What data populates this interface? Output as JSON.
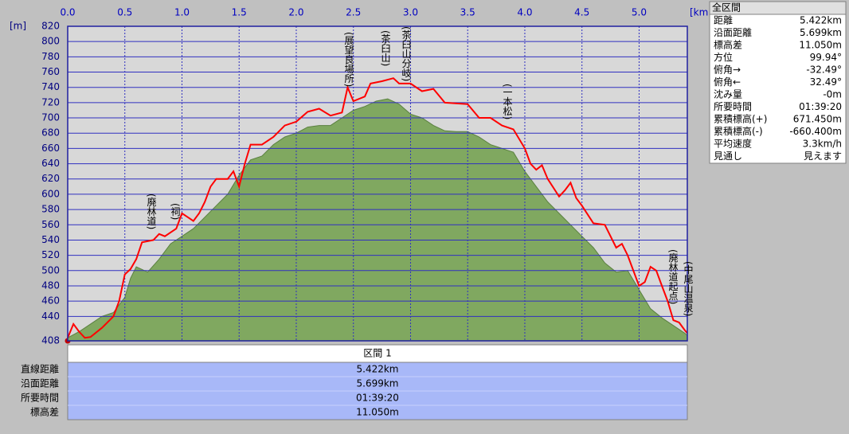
{
  "chart_data": {
    "type": "line",
    "x_unit": "[km]",
    "y_unit": "[m]",
    "xlim": [
      0,
      5.422
    ],
    "xticks": [
      {
        "value": 0,
        "label": "0.0"
      },
      0.5,
      {
        "value": 1,
        "label": "1.0"
      },
      1.5,
      {
        "value": 2,
        "label": "2.0"
      },
      2.5,
      {
        "value": 3,
        "label": "3.0"
      },
      3.5,
      {
        "value": 4,
        "label": "4.0"
      },
      4.5,
      {
        "value": 5,
        "label": "5.0"
      }
    ],
    "ylim": [
      408,
      820
    ],
    "yticks": [
      408,
      440,
      460,
      480,
      500,
      520,
      540,
      560,
      580,
      600,
      620,
      640,
      660,
      680,
      700,
      720,
      740,
      760,
      780,
      800,
      820
    ],
    "grid": true,
    "series": [
      {
        "kind": "area",
        "color": "#80a860",
        "x": [
          0,
          0.1,
          0.2,
          0.3,
          0.4,
          0.5,
          0.55,
          0.6,
          0.7,
          0.8,
          0.9,
          1.0,
          1.1,
          1.2,
          1.3,
          1.4,
          1.5,
          1.6,
          1.7,
          1.8,
          1.9,
          2.0,
          2.1,
          2.2,
          2.3,
          2.4,
          2.5,
          2.6,
          2.7,
          2.8,
          2.9,
          3.0,
          3.1,
          3.2,
          3.3,
          3.4,
          3.5,
          3.6,
          3.7,
          3.8,
          3.9,
          4.0,
          4.1,
          4.2,
          4.3,
          4.4,
          4.5,
          4.6,
          4.7,
          4.8,
          4.9,
          5.0,
          5.1,
          5.2,
          5.3,
          5.4,
          5.422
        ],
        "values": [
          412,
          420,
          430,
          440,
          445,
          465,
          490,
          505,
          498,
          515,
          535,
          545,
          555,
          570,
          585,
          600,
          625,
          645,
          650,
          665,
          675,
          680,
          688,
          690,
          690,
          700,
          710,
          715,
          722,
          725,
          718,
          705,
          700,
          690,
          683,
          682,
          682,
          675,
          665,
          660,
          655,
          630,
          610,
          590,
          575,
          560,
          545,
          530,
          510,
          498,
          500,
          475,
          450,
          438,
          428,
          418,
          415
        ]
      },
      {
        "kind": "line",
        "color": "#ff0000",
        "x": [
          0,
          0.05,
          0.1,
          0.15,
          0.2,
          0.3,
          0.4,
          0.45,
          0.5,
          0.55,
          0.6,
          0.65,
          0.75,
          0.8,
          0.85,
          0.9,
          0.95,
          1.0,
          1.05,
          1.1,
          1.15,
          1.2,
          1.25,
          1.3,
          1.4,
          1.45,
          1.5,
          1.55,
          1.6,
          1.7,
          1.8,
          1.9,
          2.0,
          2.1,
          2.2,
          2.3,
          2.4,
          2.45,
          2.5,
          2.6,
          2.65,
          2.75,
          2.85,
          2.9,
          3.0,
          3.1,
          3.2,
          3.3,
          3.5,
          3.6,
          3.7,
          3.8,
          3.9,
          4.0,
          4.05,
          4.1,
          4.15,
          4.2,
          4.3,
          4.35,
          4.4,
          4.45,
          4.5,
          4.6,
          4.7,
          4.8,
          4.85,
          4.9,
          5.0,
          5.05,
          5.1,
          5.15,
          5.2,
          5.25,
          5.3,
          5.35,
          5.4,
          5.422
        ],
        "values": [
          412,
          430,
          420,
          412,
          413,
          425,
          440,
          460,
          495,
          502,
          515,
          537,
          540,
          548,
          545,
          550,
          555,
          575,
          570,
          565,
          575,
          590,
          610,
          620,
          620,
          630,
          610,
          640,
          665,
          665,
          675,
          690,
          695,
          708,
          712,
          703,
          707,
          740,
          722,
          728,
          745,
          748,
          752,
          745,
          745,
          735,
          738,
          720,
          718,
          700,
          700,
          690,
          685,
          660,
          640,
          632,
          638,
          620,
          597,
          605,
          615,
          595,
          585,
          562,
          560,
          530,
          535,
          520,
          480,
          485,
          505,
          500,
          480,
          460,
          435,
          432,
          422,
          418
        ]
      }
    ],
    "annotations": [
      {
        "text": "(廃林道)"
      },
      {
        "text": "(祠)"
      },
      {
        "text": "(展望良場所)"
      },
      {
        "text": "(茶臼山)"
      },
      {
        "text": "(茶臼山分岐)"
      },
      {
        "text": "(一本松)"
      },
      {
        "text": "(廃林道起点)"
      },
      {
        "text": "(中尾山温泉)"
      }
    ]
  },
  "summary": {
    "title": "全区間",
    "rows": [
      [
        "距離",
        "5.422km"
      ],
      [
        "沿面距離",
        "5.699km"
      ],
      [
        "標高差",
        "11.050m"
      ],
      [
        "方位",
        "99.94°"
      ],
      [
        "俯角→",
        "-32.49°"
      ],
      [
        "俯角←",
        "32.49°"
      ],
      [
        "沈み量",
        "-0m"
      ],
      [
        "所要時間",
        "01:39:20"
      ],
      [
        "累積標高(+)",
        "671.450m"
      ],
      [
        "累積標高(-)",
        "-660.400m"
      ],
      [
        "平均速度",
        "3.3km/h"
      ],
      [
        "見通し",
        "見えます"
      ]
    ]
  },
  "table": {
    "header": "区間 1",
    "rows": [
      [
        "直線距離",
        "5.422km"
      ],
      [
        "沿面距離",
        "5.699km"
      ],
      [
        "所要時間",
        "01:39:20"
      ],
      [
        "標高差",
        "11.050m"
      ]
    ]
  }
}
